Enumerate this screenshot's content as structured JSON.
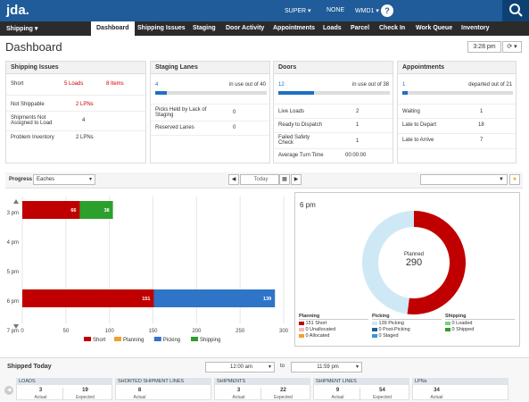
{
  "topbar": {
    "logo": "jda.",
    "user": "SUPER ▾",
    "none": "NONE",
    "site": "WMD1 ▾",
    "help": "?"
  },
  "nav": {
    "module": "Shipping ▾",
    "tabs": [
      "Dashboard",
      "Shipping Issues",
      "Staging",
      "Door Activity",
      "Appointments",
      "Loads",
      "Parcel",
      "Check In",
      "Work Queue",
      "Inventory"
    ]
  },
  "page": {
    "title": "Dashboard",
    "time": "3:28 pm",
    "refresh": "⟳ ▾"
  },
  "shipping_issues": {
    "title": "Shipping Issues",
    "rows": [
      {
        "label": "Short",
        "v1": "5 Loads",
        "v2": "8 Items"
      },
      {
        "label": "Not Shippable",
        "v1": "2 LPNs",
        "v2": ""
      },
      {
        "label": "Shipments Not Assigned to Load",
        "v1": "4",
        "v2": ""
      },
      {
        "label": "Problem Inventory",
        "v1": "2 LPNs",
        "v2": ""
      }
    ]
  },
  "staging_lanes": {
    "title": "Staging Lanes",
    "value": "4",
    "status": "in use out of 40",
    "fill": 0.1,
    "rows": [
      {
        "label": "Picks Held by Lack of Staging",
        "v": "0"
      },
      {
        "label": "Reserved Lanes",
        "v": "0"
      }
    ]
  },
  "doors": {
    "title": "Doors",
    "value": "12",
    "status": "in use out of 38",
    "fill": 0.32,
    "rows": [
      {
        "label": "Live Loads",
        "v": "2"
      },
      {
        "label": "Ready to Dispatch",
        "v": "1"
      },
      {
        "label": "Failed Safety Check",
        "v": "1"
      },
      {
        "label": "Average Turn Time",
        "v": "00:00:00"
      }
    ]
  },
  "appointments": {
    "title": "Appointments",
    "value": "1",
    "status": "departed out of 21",
    "fill": 0.05,
    "rows": [
      {
        "label": "Waiting",
        "v": "1"
      },
      {
        "label": "Late to Depart",
        "v": "18"
      },
      {
        "label": "Late to Arrive",
        "v": "7"
      }
    ]
  },
  "progress": {
    "label": "Progress",
    "unit": "Eaches",
    "date": "Today"
  },
  "chart_data": {
    "type": "bar",
    "orientation": "horizontal",
    "stacked": true,
    "categories": [
      "3 pm",
      "4 pm",
      "5 pm",
      "6 pm",
      "7 pm"
    ],
    "xlim": [
      0,
      300
    ],
    "xticks": [
      0,
      50,
      100,
      150,
      200,
      250,
      300
    ],
    "series": [
      {
        "name": "Short",
        "color": "#c00000",
        "values": [
          66,
          0,
          0,
          151,
          0
        ]
      },
      {
        "name": "Planning",
        "color": "#f0a030",
        "values": [
          0,
          0,
          0,
          0,
          0
        ]
      },
      {
        "name": "Picking",
        "color": "#2e75c8",
        "values": [
          0,
          0,
          0,
          139,
          0
        ]
      },
      {
        "name": "Shipping",
        "color": "#2ca02c",
        "values": [
          38,
          0,
          0,
          0,
          0
        ]
      }
    ]
  },
  "donut": {
    "title": "6 pm",
    "center_label": "Planned",
    "center_value": "290",
    "slices": [
      {
        "name": "Short",
        "value": 151,
        "color": "#c00000"
      },
      {
        "name": "Picking",
        "value": 139,
        "color": "#cfe8f5"
      }
    ],
    "legend": {
      "planning": {
        "title": "Planning",
        "items": [
          {
            "v": "151",
            "l": "Short",
            "c": "#c00000"
          },
          {
            "v": "0",
            "l": "Unallocated",
            "c": "#f4b8b8"
          },
          {
            "v": "0",
            "l": "Allocated",
            "c": "#f0a030"
          }
        ]
      },
      "picking": {
        "title": "Picking",
        "items": [
          {
            "v": "139",
            "l": "Picking",
            "c": "#cfe8f5"
          },
          {
            "v": "0",
            "l": "Post-Picking",
            "c": "#1f5c99"
          },
          {
            "v": "0",
            "l": "Staged",
            "c": "#2e9bd6"
          }
        ]
      },
      "shipping": {
        "title": "Shipping",
        "items": [
          {
            "v": "0",
            "l": "Loaded",
            "c": "#7fd07f"
          },
          {
            "v": "0",
            "l": "Shipped",
            "c": "#2ca02c"
          }
        ]
      }
    }
  },
  "shipped_today": {
    "title": "Shipped Today",
    "from": "12:00 am",
    "to_label": "to",
    "to": "11:59 pm",
    "groups": [
      {
        "head": "LOADS",
        "a": "3",
        "e": "19"
      },
      {
        "head": "SHORTED SHIPMENT LINES",
        "a": "8",
        "e": ""
      },
      {
        "head": "SHIPMENTS",
        "a": "3",
        "e": "22"
      },
      {
        "head": "SHIPMENT LINES",
        "a": "9",
        "e": "54"
      },
      {
        "head": "LPNs",
        "a": "34",
        "e": ""
      }
    ],
    "actual_label": "Actual",
    "expected_label": "Expected"
  }
}
